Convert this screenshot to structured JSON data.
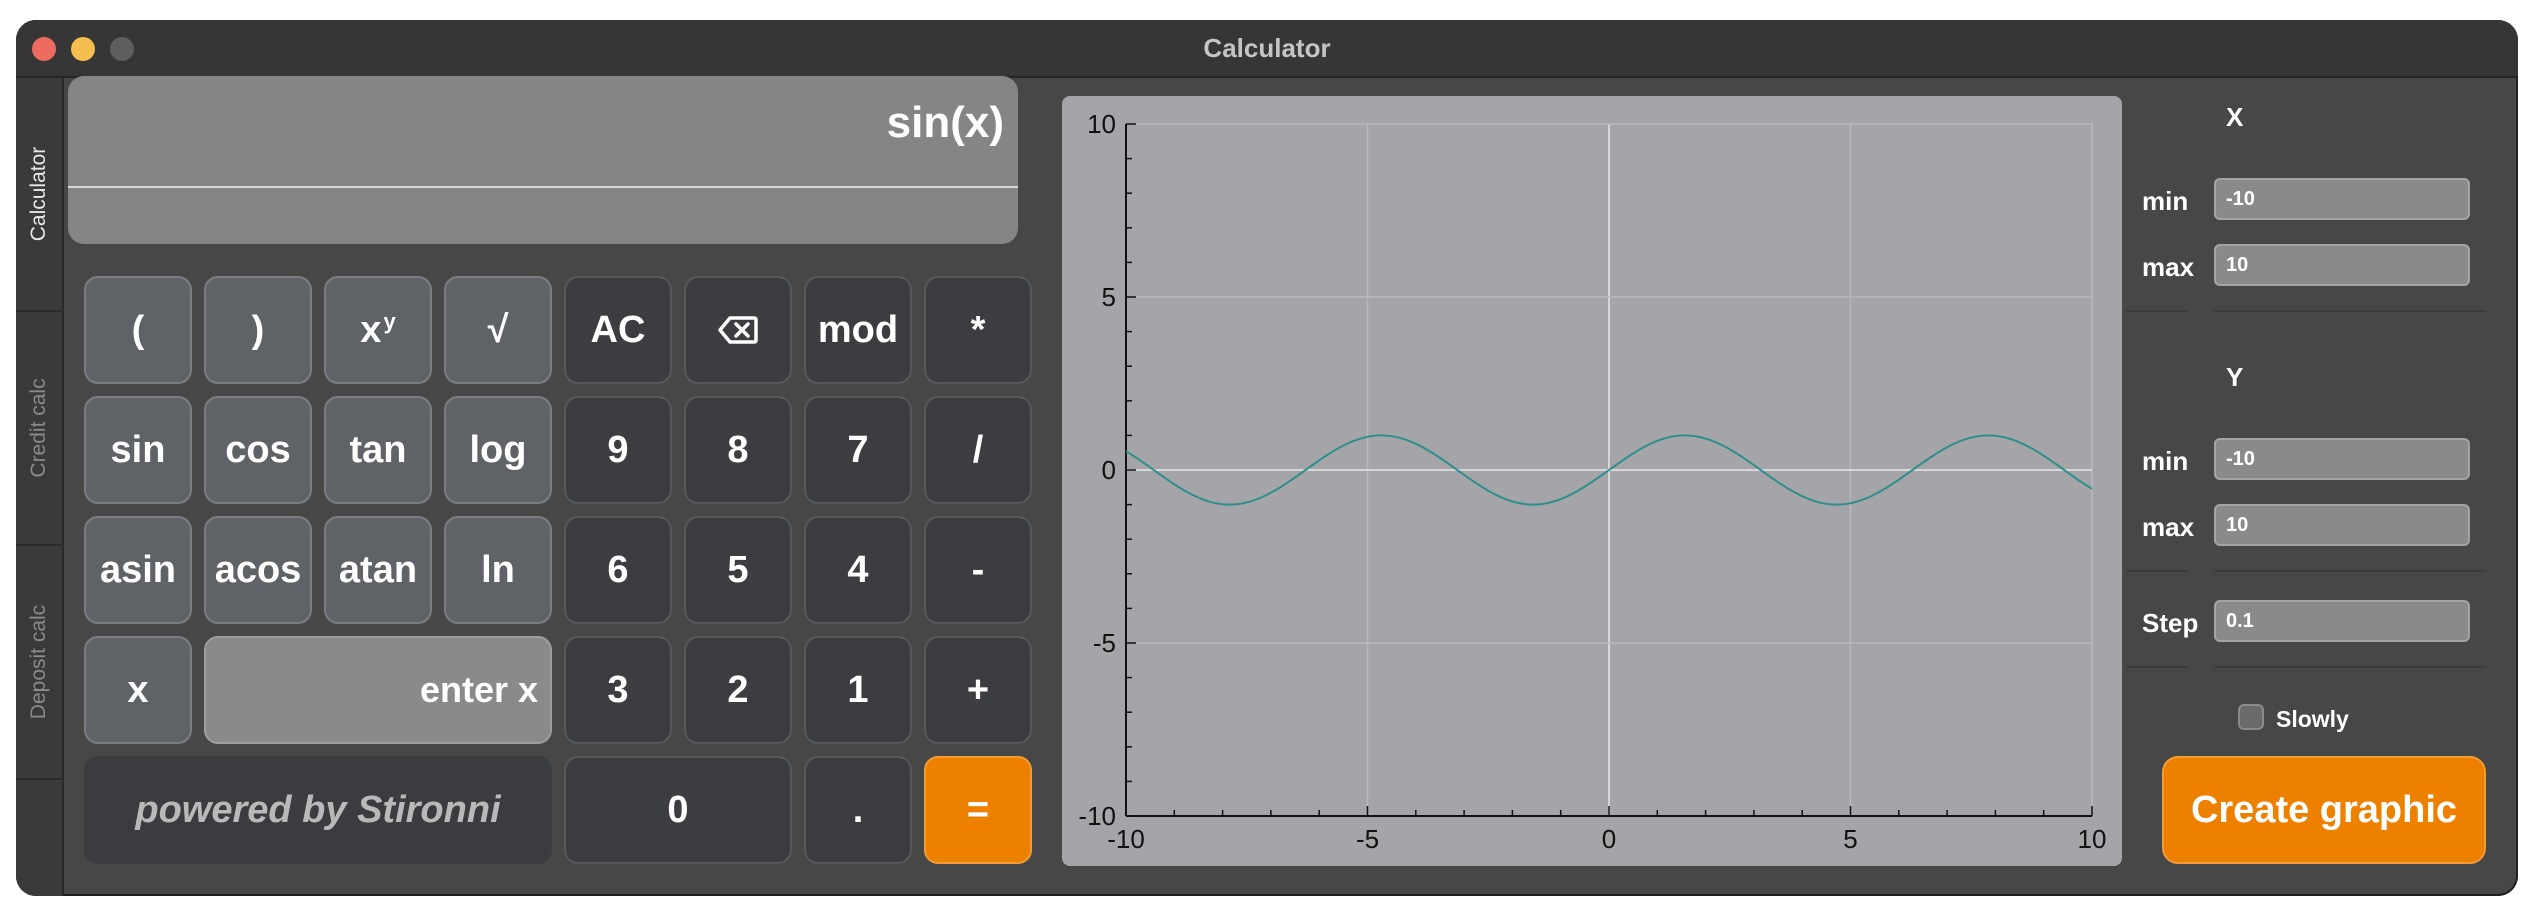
{
  "window": {
    "title": "Calculator"
  },
  "tabs": [
    {
      "label": "Calculator",
      "active": true
    },
    {
      "label": "Credit calc",
      "active": false
    },
    {
      "label": "Deposit calc",
      "active": false
    }
  ],
  "display": {
    "expression": "sin(x)",
    "result": ""
  },
  "keys": {
    "lparen": "(",
    "rparen": ")",
    "pow_base": "x",
    "pow_sup": "y",
    "sqrt": "√",
    "ac": "AC",
    "mod": "mod",
    "mul": "*",
    "sin": "sin",
    "cos": "cos",
    "tan": "tan",
    "log": "log",
    "n9": "9",
    "n8": "8",
    "n7": "7",
    "div": "/",
    "asin": "asin",
    "acos": "acos",
    "atan": "atan",
    "ln": "ln",
    "n6": "6",
    "n5": "5",
    "n4": "4",
    "minus": "-",
    "x": "x",
    "n3": "3",
    "n2": "2",
    "n1": "1",
    "plus": "+",
    "n0": "0",
    "dot": ".",
    "eq": "="
  },
  "x_input": {
    "placeholder": "enter x",
    "value": ""
  },
  "powered_by": "powered by Stironni",
  "graph_params": {
    "x_heading": "X",
    "y_heading": "Y",
    "min_label": "min",
    "max_label": "max",
    "step_label": "Step",
    "x_min": "-10",
    "x_max": "10",
    "y_min": "-10",
    "y_max": "10",
    "step": "0.1",
    "slowly_label": "Slowly",
    "slowly_checked": false,
    "create_label": "Create graphic"
  },
  "colors": {
    "accent": "#ee8000",
    "curve": "#2e8f8a"
  },
  "chart_data": {
    "type": "line",
    "function": "sin(x)",
    "xlim": [
      -10,
      10
    ],
    "ylim": [
      -10,
      10
    ],
    "x_ticks": [
      "-10",
      "-5",
      "0",
      "5",
      "10"
    ],
    "y_ticks": [
      "10",
      "5",
      "0",
      "-5",
      "-10"
    ],
    "grid": true
  }
}
